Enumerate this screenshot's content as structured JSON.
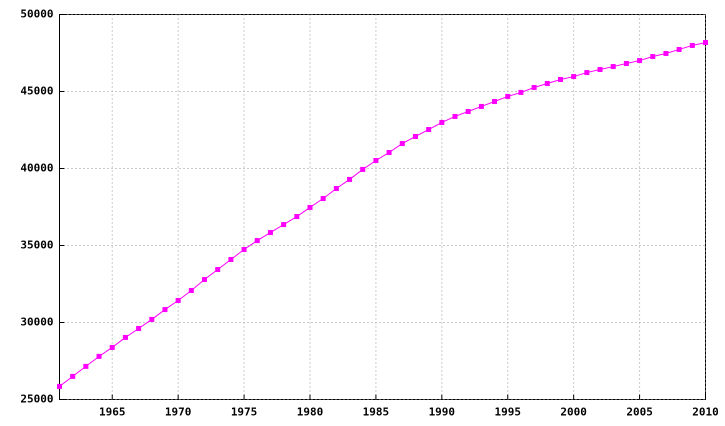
{
  "chart_data": {
    "type": "line",
    "x": [
      1961,
      1962,
      1963,
      1964,
      1965,
      1966,
      1967,
      1968,
      1969,
      1970,
      1971,
      1972,
      1973,
      1974,
      1975,
      1976,
      1977,
      1978,
      1979,
      1980,
      1981,
      1982,
      1983,
      1984,
      1985,
      1986,
      1987,
      1988,
      1989,
      1990,
      1991,
      1992,
      1993,
      1994,
      1995,
      1996,
      1997,
      1998,
      1999,
      2000,
      2001,
      2002,
      2003,
      2004,
      2005,
      2006,
      2007,
      2008,
      2009,
      2010
    ],
    "values": [
      25850,
      26500,
      27150,
      27800,
      28380,
      29030,
      29610,
      30200,
      30840,
      31430,
      32080,
      32790,
      33440,
      34090,
      34740,
      35320,
      35840,
      36360,
      36880,
      37470,
      38050,
      38700,
      39290,
      39940,
      40520,
      41040,
      41620,
      42080,
      42530,
      42990,
      43380,
      43700,
      44030,
      44350,
      44680,
      44940,
      45260,
      45520,
      45780,
      45970,
      46230,
      46430,
      46620,
      46820,
      47010,
      47270,
      47470,
      47730,
      47990,
      48180
    ],
    "color": "#ff00ff",
    "xlim": [
      1961,
      2010
    ],
    "xticks": [
      1965,
      1970,
      1975,
      1980,
      1985,
      1990,
      1995,
      2000,
      2005,
      2010
    ],
    "ylim": [
      25000,
      50000
    ],
    "yticks": [
      25000,
      30000,
      35000,
      40000,
      45000,
      50000
    ],
    "grid": true
  }
}
